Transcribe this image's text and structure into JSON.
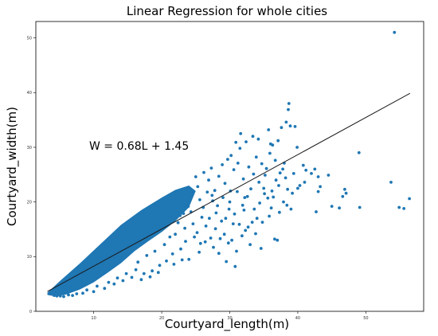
{
  "chart_data": {
    "type": "scatter",
    "title": "Linear Regression for whole cities",
    "xlabel": "Courtyard_length(m)",
    "ylabel": "Courtyard_width(m)",
    "xlim": [
      1.5,
      58.5
    ],
    "ylim": [
      0,
      53
    ],
    "xticks": [
      10,
      20,
      30,
      40,
      50
    ],
    "yticks": [
      0,
      10,
      20,
      30,
      40,
      50
    ],
    "grid": false,
    "color": "#1f77b4",
    "annotation": "W = 0.68L + 1.45",
    "fit_line": {
      "slope": 0.68,
      "intercept": 1.45,
      "x_range": [
        3.2,
        56.5
      ]
    },
    "dense_cloud": {
      "description_free_outline_in_data_units": [
        [
          3.2,
          3.4
        ],
        [
          5,
          5.5
        ],
        [
          8,
          8.8
        ],
        [
          11,
          12.3
        ],
        [
          14,
          15.8
        ],
        [
          17,
          18.5
        ],
        [
          20,
          20.8
        ],
        [
          22,
          22.2
        ],
        [
          24,
          23
        ],
        [
          25,
          22
        ],
        [
          24,
          19
        ],
        [
          22,
          16.5
        ],
        [
          20,
          14.5
        ],
        [
          18,
          12.8
        ],
        [
          16,
          11
        ],
        [
          14,
          8.8
        ],
        [
          12,
          7
        ],
        [
          10,
          5.3
        ],
        [
          8,
          4
        ],
        [
          6,
          3.1
        ],
        [
          4.5,
          2.7
        ],
        [
          3.2,
          3.0
        ]
      ]
    },
    "points": [
      [
        3.5,
        3.2
      ],
      [
        4.2,
        2.9
      ],
      [
        5.1,
        2.8
      ],
      [
        6.3,
        3.0
      ],
      [
        7.5,
        3.2
      ],
      [
        9.0,
        3.9
      ],
      [
        10.5,
        4.6
      ],
      [
        12.2,
        5.3
      ],
      [
        13.5,
        6.1
      ],
      [
        14.8,
        6.9
      ],
      [
        16.2,
        7.6
      ],
      [
        17.0,
        5.8
      ],
      [
        18.3,
        6.3
      ],
      [
        19.5,
        7.1
      ],
      [
        16.5,
        9.0
      ],
      [
        17.8,
        10.2
      ],
      [
        19.0,
        11.0
      ],
      [
        20.4,
        12.2
      ],
      [
        21.2,
        13.6
      ],
      [
        22.0,
        14.1
      ],
      [
        21.6,
        10.5
      ],
      [
        22.8,
        11.4
      ],
      [
        23.5,
        12.8
      ],
      [
        24.0,
        9.5
      ],
      [
        23.4,
        15.2
      ],
      [
        24.6,
        16.0
      ],
      [
        25.2,
        14.4
      ],
      [
        25.9,
        17.2
      ],
      [
        26.5,
        15.6
      ],
      [
        27.2,
        13.4
      ],
      [
        26.1,
        19.0
      ],
      [
        27.5,
        20.2
      ],
      [
        28.0,
        18.0
      ],
      [
        28.8,
        16.5
      ],
      [
        29.2,
        14.1
      ],
      [
        29.8,
        12.5
      ],
      [
        30.3,
        13.0
      ],
      [
        30.7,
        17.8
      ],
      [
        31.4,
        15.9
      ],
      [
        31.9,
        19.4
      ],
      [
        32.6,
        21.0
      ],
      [
        32.1,
        18.5
      ],
      [
        33.3,
        16.3
      ],
      [
        33.8,
        14.2
      ],
      [
        34.4,
        19.8
      ],
      [
        35.0,
        22.5
      ],
      [
        35.6,
        20.7
      ],
      [
        36.1,
        18.9
      ],
      [
        36.8,
        24.0
      ],
      [
        37.3,
        18.1
      ],
      [
        37.9,
        20.0
      ],
      [
        38.5,
        22.3
      ],
      [
        39.2,
        21.6
      ],
      [
        36.6,
        13.2
      ],
      [
        37.0,
        13.0
      ],
      [
        34.6,
        11.5
      ],
      [
        34.0,
        17.0
      ],
      [
        33.0,
        12.2
      ],
      [
        32.3,
        14.8
      ],
      [
        31.0,
        11.0
      ],
      [
        30.8,
        8.2
      ],
      [
        29.5,
        9.1
      ],
      [
        28.4,
        10.6
      ],
      [
        27.6,
        11.7
      ],
      [
        25.7,
        12.4
      ],
      [
        24.8,
        13.6
      ],
      [
        22.7,
        17.5
      ],
      [
        23.9,
        19.2
      ],
      [
        24.5,
        21.5
      ],
      [
        25.3,
        22.8
      ],
      [
        25.0,
        24.6
      ],
      [
        26.2,
        25.4
      ],
      [
        26.9,
        24.0
      ],
      [
        27.3,
        26.2
      ],
      [
        27.8,
        22.1
      ],
      [
        28.4,
        24.7
      ],
      [
        28.9,
        26.8
      ],
      [
        29.3,
        23.4
      ],
      [
        29.7,
        27.8
      ],
      [
        30.2,
        28.5
      ],
      [
        30.6,
        25.9
      ],
      [
        31.2,
        27.1
      ],
      [
        31.5,
        29.8
      ],
      [
        30.1,
        22.0
      ],
      [
        29.0,
        20.8
      ],
      [
        32.0,
        24.2
      ],
      [
        32.8,
        26.4
      ],
      [
        33.5,
        25.1
      ],
      [
        33.9,
        28.2
      ],
      [
        34.7,
        27.0
      ],
      [
        35.4,
        26.1
      ],
      [
        35.9,
        28.9
      ],
      [
        36.3,
        30.4
      ],
      [
        37.1,
        31.2
      ],
      [
        37.6,
        33.6
      ],
      [
        38.3,
        34.6
      ],
      [
        38.6,
        36.9
      ],
      [
        38.7,
        38.0
      ],
      [
        38.9,
        33.9
      ],
      [
        39.6,
        33.8
      ],
      [
        36.0,
        30.6
      ],
      [
        35.2,
        24.9
      ],
      [
        34.2,
        31.5
      ],
      [
        33.4,
        32.0
      ],
      [
        32.4,
        31.0
      ],
      [
        31.6,
        32.5
      ],
      [
        30.9,
        30.9
      ],
      [
        35.7,
        33.2
      ],
      [
        36.7,
        27.6
      ],
      [
        37.8,
        26.0
      ],
      [
        38.2,
        24.4
      ],
      [
        39.9,
        30.0
      ],
      [
        40.3,
        23.0
      ],
      [
        41.2,
        25.8
      ],
      [
        40.8,
        26.7
      ],
      [
        42.5,
        26.0
      ],
      [
        42.0,
        25.2
      ],
      [
        43.0,
        24.6
      ],
      [
        43.3,
        22.8
      ],
      [
        43.0,
        21.9
      ],
      [
        42.7,
        18.2
      ],
      [
        44.5,
        24.9
      ],
      [
        45.0,
        19.2
      ],
      [
        46.1,
        18.9
      ],
      [
        46.6,
        21.0
      ],
      [
        47.1,
        21.6
      ],
      [
        46.9,
        22.3
      ],
      [
        49.0,
        29.0
      ],
      [
        49.1,
        19.0
      ],
      [
        53.7,
        23.6
      ],
      [
        54.2,
        51.0
      ],
      [
        54.9,
        19.0
      ],
      [
        55.6,
        18.8
      ],
      [
        56.4,
        20.6
      ],
      [
        41.0,
        23.6
      ],
      [
        40.0,
        22.5
      ],
      [
        39.4,
        25.2
      ],
      [
        38.0,
        27.1
      ],
      [
        37.4,
        25.3
      ],
      [
        36.2,
        22.0
      ],
      [
        35.1,
        21.5
      ],
      [
        34.8,
        16.3
      ],
      [
        33.6,
        18.7
      ],
      [
        32.7,
        15.4
      ],
      [
        31.8,
        13.8
      ],
      [
        30.5,
        16.0
      ],
      [
        29.9,
        18.7
      ],
      [
        28.6,
        13.3
      ],
      [
        27.9,
        15.1
      ],
      [
        27.0,
        17.0
      ],
      [
        26.4,
        12.7
      ],
      [
        25.5,
        10.8
      ],
      [
        23.0,
        9.4
      ],
      [
        21.8,
        8.6
      ],
      [
        20.7,
        9.2
      ],
      [
        19.7,
        8.4
      ],
      [
        18.6,
        7.4
      ],
      [
        17.4,
        6.9
      ],
      [
        15.6,
        6.2
      ],
      [
        14.3,
        5.6
      ],
      [
        13.0,
        5.0
      ],
      [
        11.6,
        4.2
      ],
      [
        10.0,
        3.6
      ],
      [
        8.4,
        3.3
      ],
      [
        6.9,
        2.9
      ],
      [
        5.6,
        2.7
      ],
      [
        4.6,
        2.8
      ],
      [
        4.0,
        3.3
      ],
      [
        36.4,
        20.9
      ],
      [
        37.2,
        23.0
      ],
      [
        38.4,
        19.4
      ],
      [
        39.0,
        18.7
      ],
      [
        35.8,
        17.4
      ],
      [
        34.3,
        23.6
      ],
      [
        33.1,
        22.4
      ],
      [
        32.2,
        20.8
      ],
      [
        31.1,
        21.9
      ],
      [
        30.0,
        20.0
      ],
      [
        29.4,
        17.0
      ],
      [
        28.2,
        19.3
      ],
      [
        27.4,
        21.2
      ],
      [
        26.7,
        21.8
      ],
      [
        25.6,
        20.4
      ],
      [
        24.3,
        18.2
      ],
      [
        23.2,
        17.9
      ],
      [
        22.4,
        16.2
      ]
    ]
  }
}
